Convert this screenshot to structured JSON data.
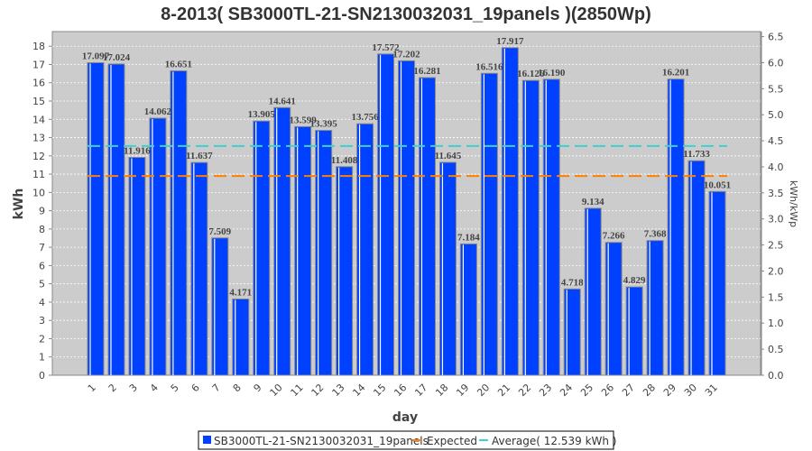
{
  "chart_data": {
    "type": "bar",
    "title": "8-2013( SB3000TL-21-SN2130032031_19panels )(2850Wp)",
    "xlabel": "day",
    "ylabel": "kWh",
    "y2label": "kWh/kWp",
    "ylim": [
      0,
      18.8
    ],
    "y2lim": [
      0,
      6.596
    ],
    "y2_divisor": 2.85,
    "yticks": [
      "0",
      "1",
      "2",
      "3",
      "4",
      "5",
      "6",
      "7",
      "8",
      "9",
      "10",
      "11",
      "12",
      "13",
      "14",
      "15",
      "16",
      "17",
      "18"
    ],
    "y2ticks": [
      "0.0",
      "0.5",
      "1.0",
      "1.5",
      "2.0",
      "2.5",
      "3.0",
      "3.5",
      "4.0",
      "4.5",
      "5.0",
      "5.5",
      "6.0",
      "6.5"
    ],
    "categories": [
      "1",
      "2",
      "3",
      "4",
      "5",
      "6",
      "7",
      "8",
      "9",
      "10",
      "11",
      "12",
      "13",
      "14",
      "15",
      "16",
      "17",
      "18",
      "19",
      "20",
      "21",
      "22",
      "23",
      "24",
      "25",
      "26",
      "27",
      "28",
      "29",
      "30",
      "31"
    ],
    "series": [
      {
        "name": "SB3000TL-21-SN2130032031_19panels",
        "color": "#0040ff",
        "values": [
          17.097,
          17.024,
          11.916,
          14.062,
          16.651,
          11.637,
          7.509,
          4.171,
          13.905,
          14.641,
          13.599,
          13.395,
          11.408,
          13.756,
          17.572,
          17.202,
          16.281,
          11.645,
          7.184,
          16.516,
          17.917,
          16.126,
          16.19,
          4.718,
          9.134,
          7.266,
          4.829,
          7.368,
          16.201,
          11.733,
          10.051
        ],
        "labels": [
          "17.097",
          "17.024",
          "11.916",
          "14.062",
          "16.651",
          "11.637",
          "7.509",
          "4.171",
          "13.905",
          "14.641",
          "13.599",
          "13.395",
          "11.408",
          "13.756",
          "17.572",
          "17.202",
          "16.281",
          "11.645",
          "7.184",
          "16.516",
          "17.917",
          "16.126",
          "16.190",
          "4.718",
          "9.134",
          "7.266",
          "4.829",
          "7.368",
          "16.201",
          "11.733",
          "10.051"
        ]
      }
    ],
    "lines": [
      {
        "name": "Expected",
        "value": 10.9,
        "color": "#ff8000"
      },
      {
        "name": "Average( 12.539 kWh )",
        "value": 12.539,
        "color": "#40d0d0"
      }
    ],
    "grid": true,
    "legend": "bottom"
  }
}
